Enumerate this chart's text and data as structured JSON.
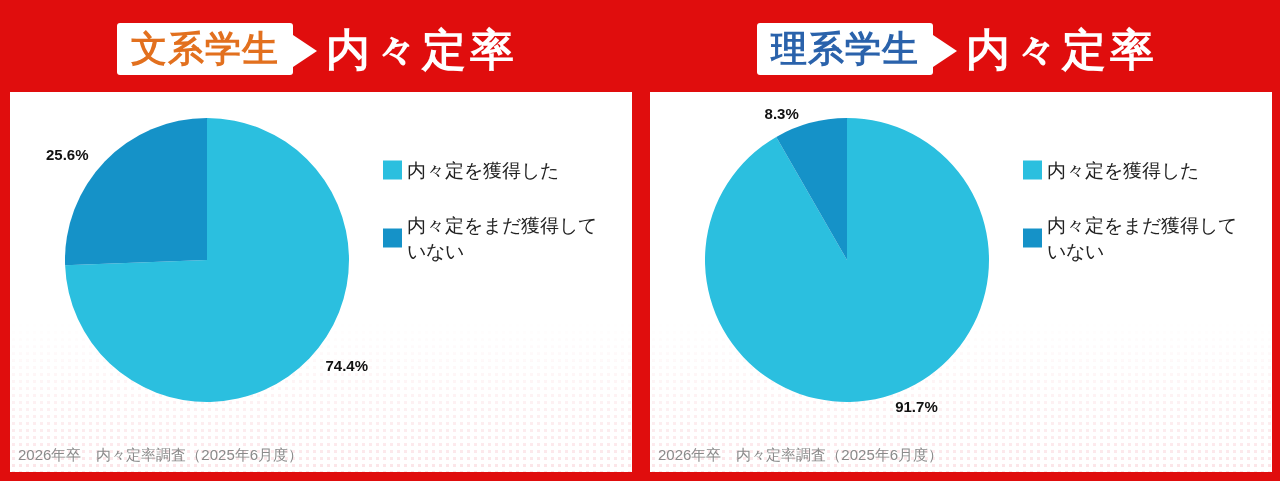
{
  "chart_data": [
    {
      "type": "pie",
      "title": "文系学生",
      "subtitle": "内々定率",
      "categories": [
        "内々定を獲得した",
        "内々定をまだ獲得していない"
      ],
      "values": [
        74.4,
        25.6
      ],
      "colors": [
        "#2bbfdf",
        "#1592c8"
      ],
      "value_labels": [
        "74.4%",
        "25.6%"
      ],
      "legend": "right",
      "annotations": [
        "2026年卒　内々定率調査（2025年6月度）"
      ]
    },
    {
      "type": "pie",
      "title": "理系学生",
      "subtitle": "内々定率",
      "categories": [
        "内々定を獲得した",
        "内々定をまだ獲得していない"
      ],
      "values": [
        91.7,
        8.3
      ],
      "colors": [
        "#2bbfdf",
        "#1592c8"
      ],
      "value_labels": [
        "91.7%",
        "8.3%"
      ],
      "legend": "right",
      "annotations": [
        "2026年卒　内々定率調査（2025年6月度）"
      ]
    }
  ]
}
